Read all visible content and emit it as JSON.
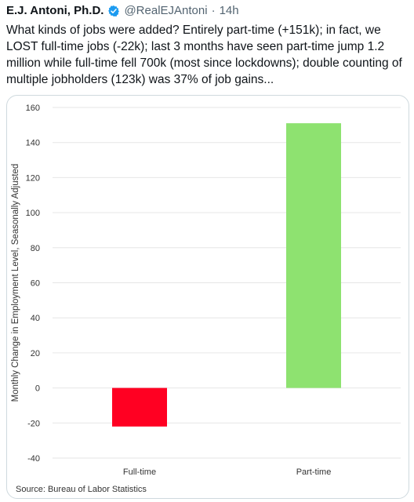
{
  "tweet": {
    "author_name": "E.J. Antoni, Ph.D.",
    "handle": "@RealEJAntoni",
    "separator": "·",
    "time": "14h",
    "text": "What kinds of jobs were added? Entirely part-time (+151k); in fact, we LOST full-time jobs (-22k); last 3 months have seen part-time jump 1.2 million while full-time fell 700k (most since lockdowns); double counting of multiple jobholders (123k) was 37% of job gains..."
  },
  "icons": {
    "verified": "verified-badge-icon"
  },
  "colors": {
    "verified": "#1d9bf0",
    "full_time_bar": "#ff0022",
    "part_time_bar": "#8ee270"
  },
  "chart_data": {
    "type": "bar",
    "categories": [
      "Full-time",
      "Part-time"
    ],
    "values": [
      -22,
      151
    ],
    "colors": [
      "#ff0022",
      "#8ee270"
    ],
    "ylabel": "Monthly Change in Employment Level, Seasonally Adjusted",
    "xlabel": "",
    "ylim": [
      -40,
      160
    ],
    "yticks": [
      -40,
      -20,
      0,
      20,
      40,
      60,
      80,
      100,
      120,
      140,
      160
    ],
    "grid": true,
    "source": "Source: Bureau of Labor Statistics"
  }
}
